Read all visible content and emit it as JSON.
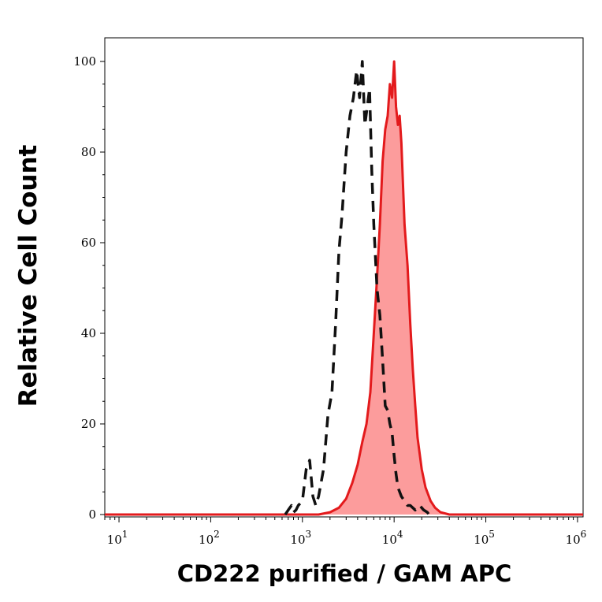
{
  "chart_data": {
    "type": "area",
    "xlabel": "CD222 purified / GAM APC",
    "ylabel": "Relative Cell Count",
    "x_scale": "log",
    "xlim": [
      7,
      1150000
    ],
    "ylim": [
      0,
      100
    ],
    "y_ticks": [
      0,
      20,
      40,
      60,
      80,
      100
    ],
    "y_tick_labels": [
      "0",
      "20",
      "40",
      "60",
      "80",
      "100"
    ],
    "x_ticks": [
      10,
      100,
      1000,
      10000,
      100000,
      1000000
    ],
    "x_tick_labels": [
      {
        "base": "10",
        "exp": "1"
      },
      {
        "base": "10",
        "exp": "2"
      },
      {
        "base": "10",
        "exp": "3"
      },
      {
        "base": "10",
        "exp": "4"
      },
      {
        "base": "10",
        "exp": "5"
      },
      {
        "base": "10",
        "exp": "6"
      }
    ],
    "grid": false,
    "legend": "none",
    "series": [
      {
        "style": "solid-filled",
        "line_color": "#e31a1c",
        "fill_color": "#fc9c9c",
        "x": [
          7,
          300,
          1500,
          2000,
          2500,
          3000,
          3500,
          4000,
          4500,
          5000,
          5500,
          6000,
          6500,
          7000,
          7500,
          8000,
          8500,
          9000,
          9500,
          10000,
          10500,
          11000,
          11500,
          12000,
          13000,
          14000,
          15000,
          16000,
          17000,
          18000,
          20000,
          22000,
          25000,
          28000,
          32000,
          40000,
          60000,
          1150000
        ],
        "y": [
          0,
          0,
          0,
          0.5,
          1.5,
          3.5,
          7,
          11,
          16,
          20,
          27,
          40,
          52,
          64,
          78,
          85,
          88,
          95,
          92,
          100,
          90,
          86,
          88,
          82,
          64,
          55,
          42,
          32,
          24,
          17,
          10,
          6,
          3,
          1.5,
          0.5,
          0,
          0,
          0
        ]
      },
      {
        "style": "dashed",
        "line_color": "#111111",
        "x": [
          650,
          700,
          760,
          800,
          850,
          900,
          1000,
          1100,
          1200,
          1300,
          1400,
          1500,
          1700,
          1900,
          2100,
          2300,
          2500,
          2700,
          3000,
          3300,
          3600,
          3900,
          4200,
          4500,
          4800,
          5100,
          5400,
          5700,
          6000,
          6500,
          7000,
          7500,
          8000,
          8500,
          9000,
          9500,
          10000,
          10500,
          11000,
          12000,
          13000,
          14000,
          15000,
          17000,
          19000,
          21000,
          23000,
          24000
        ],
        "y": [
          0,
          1,
          2,
          0.5,
          1,
          2,
          3,
          10,
          12,
          4,
          2,
          4,
          10,
          22,
          27,
          42,
          58,
          66,
          80,
          88,
          92,
          98,
          92,
          100,
          86,
          90,
          94,
          76,
          64,
          50,
          44,
          34,
          24,
          23,
          20,
          18,
          13,
          9,
          6,
          4,
          3,
          2,
          2,
          1,
          2,
          1,
          0.5,
          0
        ]
      }
    ]
  }
}
